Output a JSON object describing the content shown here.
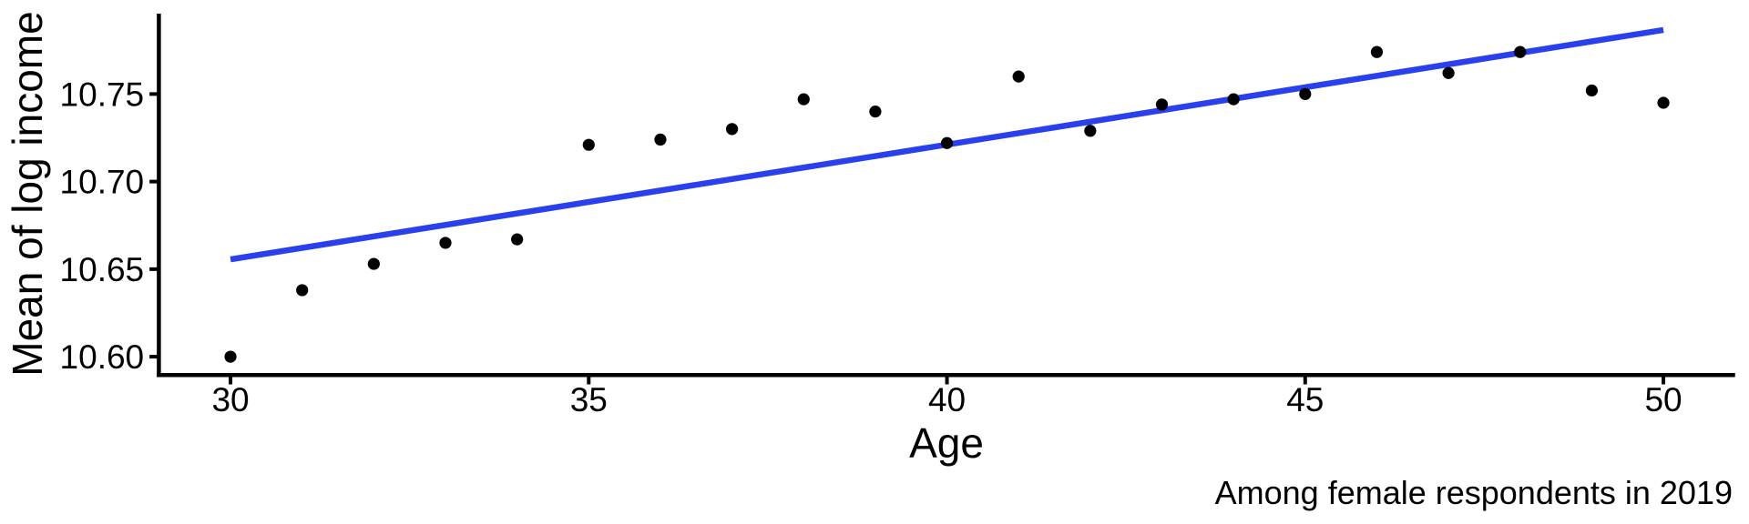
{
  "chart_data": {
    "type": "scatter",
    "title": "",
    "xlabel": "Age",
    "ylabel": "Mean of log income",
    "caption": "Among female respondents in 2019",
    "x": [
      30,
      31,
      32,
      33,
      34,
      35,
      36,
      37,
      38,
      39,
      40,
      41,
      42,
      43,
      44,
      45,
      46,
      47,
      48,
      49,
      50
    ],
    "y": [
      10.6,
      10.638,
      10.653,
      10.665,
      10.667,
      10.721,
      10.724,
      10.73,
      10.747,
      10.74,
      10.722,
      10.76,
      10.729,
      10.744,
      10.747,
      10.75,
      10.774,
      10.762,
      10.774,
      10.752,
      10.745
    ],
    "trend_line": {
      "kind": "linear-fit",
      "x": [
        30,
        50
      ],
      "y": [
        10.6556,
        10.7866
      ],
      "color": "#2a40ec",
      "stroke_width": 6.5
    },
    "point_color": "#000000",
    "point_radius": 6.6,
    "axis_color": "#000000",
    "grid": false,
    "legend": false,
    "xlim": [
      29,
      51
    ],
    "ylim": [
      10.5907,
      10.7959
    ],
    "xticks": {
      "values": [
        30,
        35,
        40,
        45,
        50
      ],
      "labels": [
        "30",
        "35",
        "40",
        "45",
        "50"
      ]
    },
    "yticks": {
      "values": [
        10.6,
        10.65,
        10.7,
        10.75
      ],
      "labels": [
        "10.60",
        "10.65",
        "10.70",
        "10.75"
      ]
    }
  }
}
